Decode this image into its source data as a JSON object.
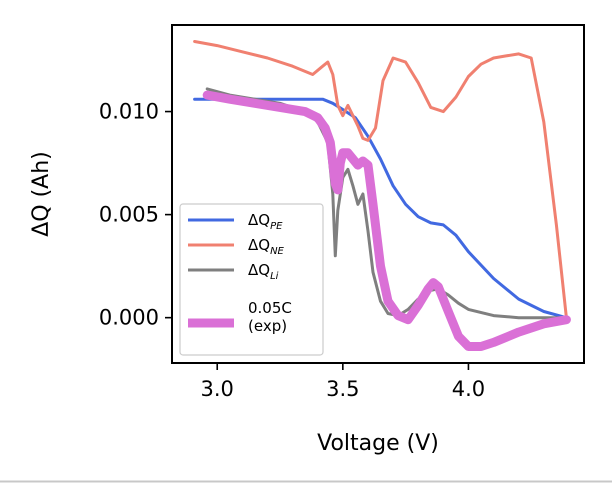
{
  "chart_data": {
    "type": "line",
    "title": "",
    "xlabel": "Voltage (V)",
    "ylabel": "ΔQ (Ah)",
    "xlim": [
      2.82,
      4.46
    ],
    "ylim": [
      -0.0022,
      0.0142
    ],
    "xticks": [
      3.0,
      3.5,
      4.0
    ],
    "xtick_labels": [
      "3.0",
      "3.5",
      "4.0"
    ],
    "yticks": [
      0.0,
      0.005,
      0.01
    ],
    "ytick_labels": [
      "0.000",
      "0.005",
      "0.010"
    ],
    "grid": false,
    "legend_position": "lower-left",
    "series": [
      {
        "name": "ΔQ_PE",
        "label_main": "ΔQ",
        "label_sub": "PE",
        "color": "#4169e1",
        "x": [
          2.91,
          3.0,
          3.1,
          3.2,
          3.3,
          3.38,
          3.42,
          3.46,
          3.5,
          3.55,
          3.6,
          3.65,
          3.7,
          3.75,
          3.8,
          3.85,
          3.9,
          3.95,
          4.0,
          4.1,
          4.2,
          4.3,
          4.39
        ],
        "y": [
          0.0106,
          0.0106,
          0.0106,
          0.0106,
          0.0106,
          0.0106,
          0.0106,
          0.0104,
          0.0101,
          0.0097,
          0.0088,
          0.0077,
          0.0064,
          0.0055,
          0.0049,
          0.0046,
          0.0045,
          0.004,
          0.0032,
          0.0019,
          0.0009,
          0.0003,
          0.0
        ]
      },
      {
        "name": "ΔQ_NE",
        "label_main": "ΔQ",
        "label_sub": "NE",
        "color": "#f08070",
        "x": [
          2.91,
          3.0,
          3.1,
          3.2,
          3.3,
          3.38,
          3.42,
          3.44,
          3.46,
          3.48,
          3.5,
          3.52,
          3.54,
          3.56,
          3.58,
          3.6,
          3.63,
          3.66,
          3.7,
          3.75,
          3.8,
          3.85,
          3.9,
          3.95,
          4.0,
          4.05,
          4.1,
          4.15,
          4.2,
          4.25,
          4.3,
          4.35,
          4.39
        ],
        "y": [
          0.0134,
          0.0132,
          0.0129,
          0.0126,
          0.0122,
          0.0118,
          0.0122,
          0.0124,
          0.0118,
          0.0103,
          0.0098,
          0.0103,
          0.0098,
          0.0093,
          0.0087,
          0.0086,
          0.0092,
          0.0115,
          0.0126,
          0.0124,
          0.0114,
          0.0102,
          0.01,
          0.0107,
          0.0117,
          0.0123,
          0.0126,
          0.0127,
          0.0128,
          0.0126,
          0.0095,
          0.0045,
          0.0
        ]
      },
      {
        "name": "ΔQ_Li",
        "label_main": "ΔQ",
        "label_sub": "Li",
        "color": "#7f7f7f",
        "x": [
          2.96,
          3.05,
          3.15,
          3.25,
          3.35,
          3.4,
          3.44,
          3.46,
          3.47,
          3.48,
          3.5,
          3.52,
          3.54,
          3.56,
          3.58,
          3.6,
          3.62,
          3.65,
          3.68,
          3.72,
          3.76,
          3.8,
          3.84,
          3.88,
          3.92,
          3.96,
          4.0,
          4.1,
          4.2,
          4.3,
          4.39
        ],
        "y": [
          0.0111,
          0.0108,
          0.0106,
          0.0104,
          0.01,
          0.0095,
          0.0085,
          0.006,
          0.003,
          0.0052,
          0.0068,
          0.0072,
          0.0064,
          0.0055,
          0.006,
          0.0042,
          0.0022,
          0.0008,
          0.0002,
          0.0001,
          0.0004,
          0.0009,
          0.0013,
          0.0014,
          0.0011,
          0.0007,
          0.0004,
          0.0001,
          0.0,
          0.0,
          0.0
        ]
      },
      {
        "name": "0.05C (exp)",
        "label_lines": [
          "0.05C",
          "(exp)"
        ],
        "color": "#da70d6",
        "x": [
          2.96,
          3.05,
          3.15,
          3.25,
          3.35,
          3.4,
          3.43,
          3.45,
          3.46,
          3.47,
          3.48,
          3.49,
          3.5,
          3.52,
          3.54,
          3.56,
          3.58,
          3.6,
          3.62,
          3.65,
          3.68,
          3.72,
          3.76,
          3.8,
          3.84,
          3.86,
          3.88,
          3.92,
          3.96,
          4.0,
          4.05,
          4.1,
          4.2,
          4.3,
          4.39
        ],
        "y": [
          0.0108,
          0.0106,
          0.0104,
          0.0102,
          0.01,
          0.0097,
          0.0092,
          0.0085,
          0.0075,
          0.0065,
          0.0062,
          0.0075,
          0.008,
          0.008,
          0.0077,
          0.0074,
          0.0076,
          0.0074,
          0.0055,
          0.0025,
          0.0008,
          0.0001,
          -0.0001,
          0.0006,
          0.0014,
          0.0017,
          0.0015,
          0.0003,
          -0.0009,
          -0.0014,
          -0.0014,
          -0.0012,
          -0.0007,
          -0.0003,
          -0.0001
        ]
      }
    ]
  }
}
